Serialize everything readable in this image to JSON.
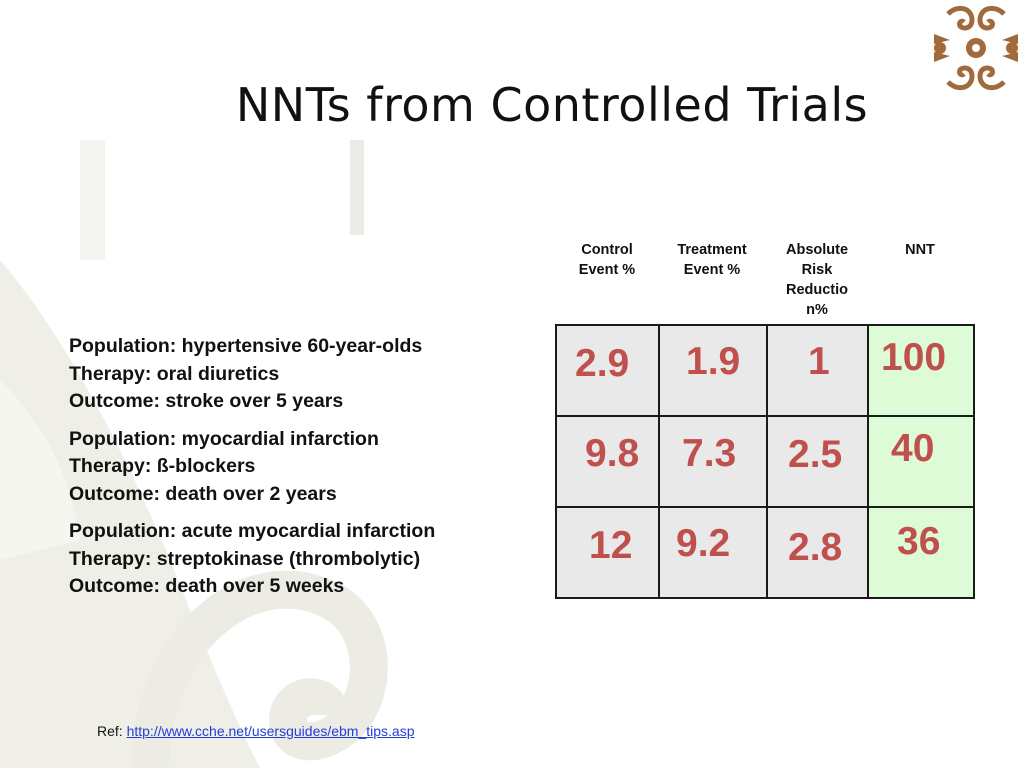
{
  "slide": {
    "title": "NNTs from Controlled Trials"
  },
  "table": {
    "headers": [
      [
        "Control",
        "Event %"
      ],
      [
        "Treatment",
        "Event %"
      ],
      [
        "Absolute",
        "Risk",
        "Reductio",
        "n%"
      ],
      [
        "NNT"
      ]
    ],
    "rows": [
      [
        "2.9",
        "1.9",
        "1",
        "100"
      ],
      [
        "9.8",
        "7.3",
        "2.5",
        "40"
      ],
      [
        "12",
        "9.2",
        "2.8",
        "36"
      ]
    ],
    "value_color": "#c0504d",
    "nnt_column_color": "#ddfbd6",
    "cell_color": "#e9e9e9"
  },
  "studies": [
    {
      "population": "Population: hypertensive 60-year-olds",
      "therapy": "Therapy: oral diuretics",
      "outcome": "Outcome: stroke over 5 years"
    },
    {
      "population": "Population: myocardial infarction",
      "therapy": "Therapy: ß-blockers",
      "outcome": "Outcome: death over 2 years"
    },
    {
      "population": "Population: acute myocardial infarction",
      "therapy": "Therapy: streptokinase (thrombolytic)",
      "outcome": "Outcome: death over 5 weeks"
    }
  ],
  "reference": {
    "prefix": "Ref: ",
    "link_text": "http://www.cche.net/usersguides/ebm_tips.asp"
  }
}
